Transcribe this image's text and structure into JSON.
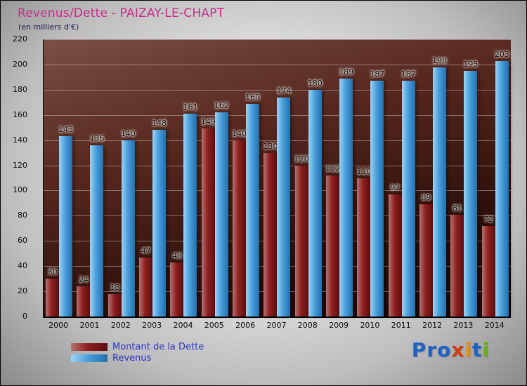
{
  "chart": {
    "title": "Revenus/Dette - PAIZAY-LE-CHAPT",
    "subtitle": "(en milliers d'€)"
  },
  "chart_data": {
    "type": "bar",
    "title": "Revenus/Dette - PAIZAY-LE-CHAPT",
    "subtitle": "(en milliers d'€)",
    "categories": [
      "2000",
      "2001",
      "2002",
      "2003",
      "2004",
      "2005",
      "2006",
      "2007",
      "2008",
      "2009",
      "2010",
      "2011",
      "2012",
      "2013",
      "2014"
    ],
    "series": [
      {
        "name": "Montant de la Dette",
        "color": "#7a1515",
        "values": [
          30,
          24,
          18,
          47,
          43,
          149,
          140,
          130,
          120,
          112,
          110,
          97,
          89,
          81,
          72
        ]
      },
      {
        "name": "Revenus",
        "color": "#3a96d8",
        "values": [
          143,
          136,
          140,
          148,
          161,
          162,
          169,
          174,
          180,
          189,
          187,
          187,
          198,
          195,
          203
        ]
      }
    ],
    "xlabel": "",
    "ylabel": "",
    "ylim": [
      0,
      220
    ],
    "ytick_step": 20,
    "grid": true,
    "legend_position": "bottom-left"
  },
  "logo": {
    "text": "Proxiti",
    "letters": [
      {
        "ch": "P",
        "color": "#1e62c8"
      },
      {
        "ch": "r",
        "color": "#1e62c8"
      },
      {
        "ch": "o",
        "color": "#1e62c8"
      },
      {
        "ch": "x",
        "color": "#d43d0a"
      },
      {
        "ch": "i",
        "color": "#f09000"
      },
      {
        "ch": "t",
        "color": "#1e62c8"
      },
      {
        "ch": "i",
        "color": "#64b414"
      }
    ]
  }
}
